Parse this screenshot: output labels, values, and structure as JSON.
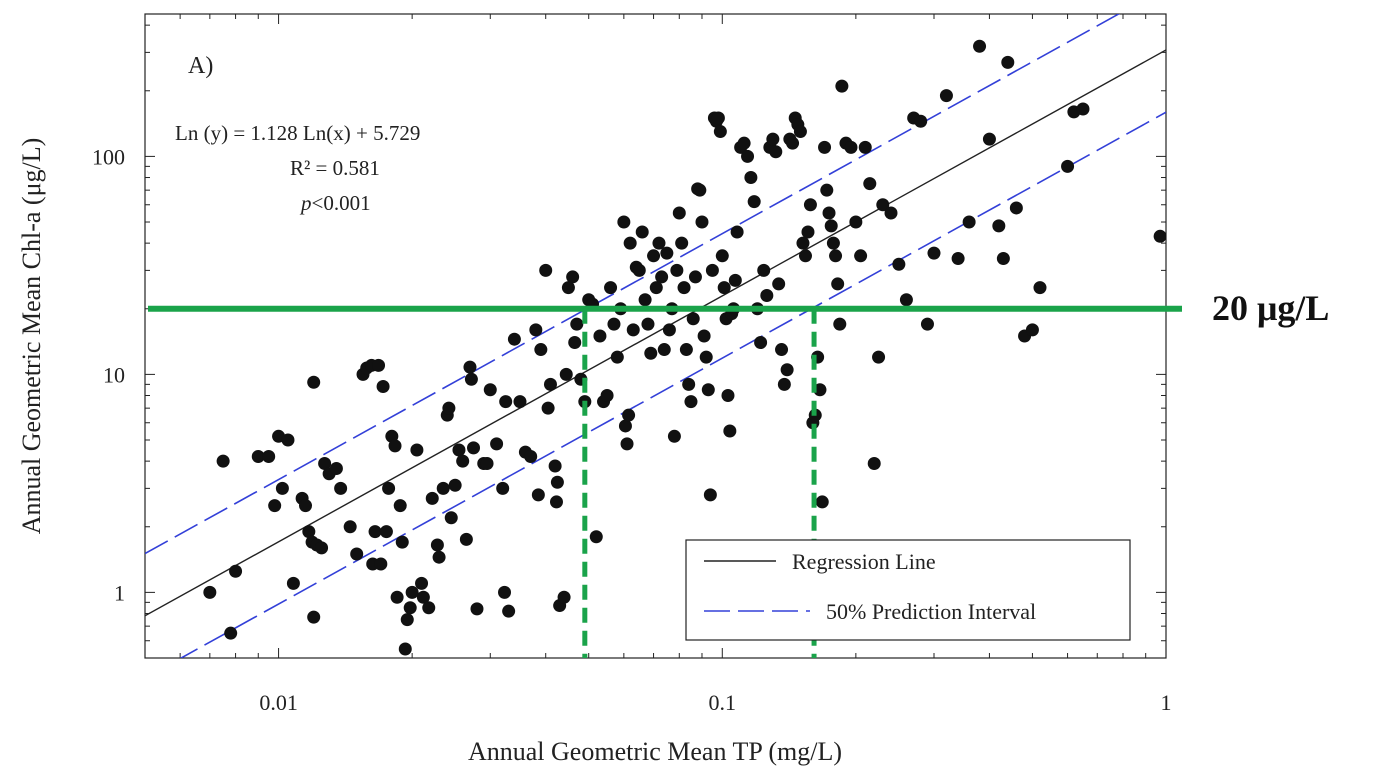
{
  "chart_data": {
    "type": "scatter",
    "panel_label": "A)",
    "xlabel": "Annual Geometric Mean TP (mg/L)",
    "ylabel": "Annual Geometric Mean Chl-a (μg/L)",
    "x_scale": "log",
    "y_scale": "log",
    "xlim": [
      0.005,
      1
    ],
    "ylim": [
      0.5,
      450
    ],
    "x_ticks": [
      0.01,
      0.1,
      1
    ],
    "x_tick_labels": [
      "0.01",
      "0.1",
      "1"
    ],
    "y_ticks": [
      1,
      10,
      100
    ],
    "y_tick_labels": [
      "1",
      "10",
      "100"
    ],
    "grid": false,
    "legend_position": "bottom-right",
    "equation": "Ln (y) = 1.128 Ln(x) + 5.729",
    "r_squared": "R² = 0.581",
    "p_value_prefix": "p",
    "p_value_rest": "<0.001",
    "regression": {
      "slope": 1.128,
      "intercept": 5.729
    },
    "prediction_interval_factor": 1.93,
    "threshold": {
      "y": 20,
      "label": "20 μg/L",
      "x_lower": 0.049,
      "x_upper": 0.161,
      "color": "#1aa34a"
    },
    "colors": {
      "regression": "#222222",
      "interval": "#3340d8",
      "points": "#111111"
    },
    "series": [
      {
        "name": "Regression Line",
        "style": "solid"
      },
      {
        "name": "50% Prediction Interval",
        "style": "dashed"
      }
    ],
    "points": [
      [
        0.007,
        1.0
      ],
      [
        0.0075,
        4.0
      ],
      [
        0.0078,
        0.65
      ],
      [
        0.008,
        1.25
      ],
      [
        0.009,
        4.2
      ],
      [
        0.0095,
        4.2
      ],
      [
        0.0098,
        2.5
      ],
      [
        0.01,
        5.2
      ],
      [
        0.0105,
        5.0
      ],
      [
        0.0102,
        3.0
      ],
      [
        0.0108,
        1.1
      ],
      [
        0.0113,
        2.7
      ],
      [
        0.0115,
        2.5
      ],
      [
        0.0117,
        1.9
      ],
      [
        0.0119,
        1.7
      ],
      [
        0.012,
        9.2
      ],
      [
        0.012,
        0.77
      ],
      [
        0.0122,
        1.65
      ],
      [
        0.0125,
        1.6
      ],
      [
        0.0127,
        3.9
      ],
      [
        0.013,
        3.5
      ],
      [
        0.0135,
        3.7
      ],
      [
        0.0138,
        3.0
      ],
      [
        0.0145,
        2.0
      ],
      [
        0.015,
        1.5
      ],
      [
        0.0155,
        10.0
      ],
      [
        0.0158,
        10.7
      ],
      [
        0.0162,
        11.0
      ],
      [
        0.0163,
        1.35
      ],
      [
        0.0165,
        1.9
      ],
      [
        0.0168,
        11.0
      ],
      [
        0.017,
        1.35
      ],
      [
        0.0172,
        8.8
      ],
      [
        0.0175,
        1.9
      ],
      [
        0.0177,
        3.0
      ],
      [
        0.018,
        5.2
      ],
      [
        0.0183,
        4.7
      ],
      [
        0.0185,
        0.95
      ],
      [
        0.0188,
        2.5
      ],
      [
        0.019,
        1.7
      ],
      [
        0.0193,
        0.55
      ],
      [
        0.0195,
        0.75
      ],
      [
        0.0198,
        0.85
      ],
      [
        0.02,
        1.0
      ],
      [
        0.0205,
        4.5
      ],
      [
        0.021,
        1.1
      ],
      [
        0.0212,
        0.95
      ],
      [
        0.0218,
        0.85
      ],
      [
        0.0222,
        2.7
      ],
      [
        0.0228,
        1.65
      ],
      [
        0.023,
        1.45
      ],
      [
        0.0235,
        3.0
      ],
      [
        0.024,
        6.5
      ],
      [
        0.0242,
        7.0
      ],
      [
        0.0245,
        2.2
      ],
      [
        0.025,
        3.1
      ],
      [
        0.0255,
        4.5
      ],
      [
        0.026,
        4.0
      ],
      [
        0.0265,
        1.75
      ],
      [
        0.027,
        10.8
      ],
      [
        0.0272,
        9.5
      ],
      [
        0.0275,
        4.6
      ],
      [
        0.028,
        0.84
      ],
      [
        0.029,
        3.9
      ],
      [
        0.0295,
        3.9
      ],
      [
        0.03,
        8.5
      ],
      [
        0.031,
        4.8
      ],
      [
        0.032,
        3.0
      ],
      [
        0.0323,
        1.0
      ],
      [
        0.0325,
        7.5
      ],
      [
        0.033,
        0.82
      ],
      [
        0.034,
        14.5
      ],
      [
        0.035,
        7.5
      ],
      [
        0.036,
        4.4
      ],
      [
        0.037,
        4.2
      ],
      [
        0.038,
        16.0
      ],
      [
        0.0385,
        2.8
      ],
      [
        0.039,
        13.0
      ],
      [
        0.04,
        30.0
      ],
      [
        0.0405,
        7.0
      ],
      [
        0.041,
        9.0
      ],
      [
        0.042,
        3.8
      ],
      [
        0.0423,
        2.6
      ],
      [
        0.0425,
        3.2
      ],
      [
        0.043,
        0.87
      ],
      [
        0.044,
        0.95
      ],
      [
        0.0445,
        10.0
      ],
      [
        0.045,
        25.0
      ],
      [
        0.046,
        28.0
      ],
      [
        0.0465,
        14.0
      ],
      [
        0.047,
        17.0
      ],
      [
        0.048,
        9.5
      ],
      [
        0.049,
        7.5
      ],
      [
        0.05,
        22.0
      ],
      [
        0.051,
        21.0
      ],
      [
        0.052,
        1.8
      ],
      [
        0.053,
        15.0
      ],
      [
        0.054,
        7.5
      ],
      [
        0.055,
        8.0
      ],
      [
        0.056,
        25.0
      ],
      [
        0.057,
        17.0
      ],
      [
        0.058,
        12.0
      ],
      [
        0.059,
        20.0
      ],
      [
        0.06,
        50.0
      ],
      [
        0.0605,
        5.8
      ],
      [
        0.061,
        4.8
      ],
      [
        0.0615,
        6.5
      ],
      [
        0.062,
        40.0
      ],
      [
        0.063,
        16.0
      ],
      [
        0.064,
        31.0
      ],
      [
        0.065,
        30.0
      ],
      [
        0.066,
        45.0
      ],
      [
        0.067,
        22.0
      ],
      [
        0.068,
        17.0
      ],
      [
        0.069,
        12.5
      ],
      [
        0.07,
        35.0
      ],
      [
        0.071,
        25.0
      ],
      [
        0.072,
        40.0
      ],
      [
        0.073,
        28.0
      ],
      [
        0.074,
        13.0
      ],
      [
        0.075,
        36.0
      ],
      [
        0.076,
        16.0
      ],
      [
        0.077,
        20.0
      ],
      [
        0.078,
        5.2
      ],
      [
        0.079,
        30.0
      ],
      [
        0.08,
        55.0
      ],
      [
        0.081,
        40.0
      ],
      [
        0.082,
        25.0
      ],
      [
        0.083,
        13.0
      ],
      [
        0.084,
        9.0
      ],
      [
        0.085,
        7.5
      ],
      [
        0.086,
        18.0
      ],
      [
        0.087,
        28.0
      ],
      [
        0.088,
        71.0
      ],
      [
        0.089,
        70.0
      ],
      [
        0.09,
        50.0
      ],
      [
        0.091,
        15.0
      ],
      [
        0.092,
        12.0
      ],
      [
        0.093,
        8.5
      ],
      [
        0.094,
        2.8
      ],
      [
        0.095,
        30.0
      ],
      [
        0.096,
        150.0
      ],
      [
        0.097,
        145.0
      ],
      [
        0.098,
        150.0
      ],
      [
        0.099,
        130.0
      ],
      [
        0.1,
        35.0
      ],
      [
        0.101,
        25.0
      ],
      [
        0.102,
        18.0
      ],
      [
        0.103,
        8.0
      ],
      [
        0.104,
        5.5
      ],
      [
        0.105,
        19.0
      ],
      [
        0.106,
        20.0
      ],
      [
        0.107,
        27.0
      ],
      [
        0.108,
        45.0
      ],
      [
        0.11,
        110.0
      ],
      [
        0.112,
        115.0
      ],
      [
        0.114,
        100.0
      ],
      [
        0.116,
        80.0
      ],
      [
        0.118,
        62.0
      ],
      [
        0.12,
        20.0
      ],
      [
        0.122,
        14.0
      ],
      [
        0.124,
        30.0
      ],
      [
        0.126,
        23.0
      ],
      [
        0.128,
        110.0
      ],
      [
        0.13,
        120.0
      ],
      [
        0.132,
        105.0
      ],
      [
        0.134,
        26.0
      ],
      [
        0.136,
        13.0
      ],
      [
        0.138,
        9.0
      ],
      [
        0.14,
        10.5
      ],
      [
        0.142,
        120.0
      ],
      [
        0.144,
        115.0
      ],
      [
        0.146,
        150.0
      ],
      [
        0.148,
        140.0
      ],
      [
        0.15,
        130.0
      ],
      [
        0.152,
        40.0
      ],
      [
        0.154,
        35.0
      ],
      [
        0.156,
        45.0
      ],
      [
        0.158,
        60.0
      ],
      [
        0.16,
        6.0
      ],
      [
        0.162,
        6.5
      ],
      [
        0.164,
        12.0
      ],
      [
        0.166,
        8.5
      ],
      [
        0.168,
        2.6
      ],
      [
        0.17,
        110.0
      ],
      [
        0.172,
        70.0
      ],
      [
        0.174,
        55.0
      ],
      [
        0.176,
        48.0
      ],
      [
        0.178,
        40.0
      ],
      [
        0.18,
        35.0
      ],
      [
        0.182,
        26.0
      ],
      [
        0.184,
        17.0
      ],
      [
        0.186,
        210.0
      ],
      [
        0.19,
        115.0
      ],
      [
        0.195,
        110.0
      ],
      [
        0.2,
        50.0
      ],
      [
        0.205,
        35.0
      ],
      [
        0.21,
        110.0
      ],
      [
        0.215,
        75.0
      ],
      [
        0.22,
        3.9
      ],
      [
        0.225,
        12.0
      ],
      [
        0.23,
        60.0
      ],
      [
        0.24,
        55.0
      ],
      [
        0.25,
        32.0
      ],
      [
        0.26,
        22.0
      ],
      [
        0.27,
        150.0
      ],
      [
        0.28,
        145.0
      ],
      [
        0.29,
        17.0
      ],
      [
        0.3,
        36.0
      ],
      [
        0.32,
        190.0
      ],
      [
        0.34,
        34.0
      ],
      [
        0.36,
        50.0
      ],
      [
        0.38,
        320.0
      ],
      [
        0.4,
        120.0
      ],
      [
        0.42,
        48.0
      ],
      [
        0.43,
        34.0
      ],
      [
        0.44,
        270.0
      ],
      [
        0.46,
        58.0
      ],
      [
        0.48,
        15.0
      ],
      [
        0.5,
        16.0
      ],
      [
        0.52,
        25.0
      ],
      [
        0.6,
        90.0
      ],
      [
        0.62,
        160.0
      ],
      [
        0.65,
        165.0
      ],
      [
        0.97,
        43.0
      ]
    ]
  }
}
